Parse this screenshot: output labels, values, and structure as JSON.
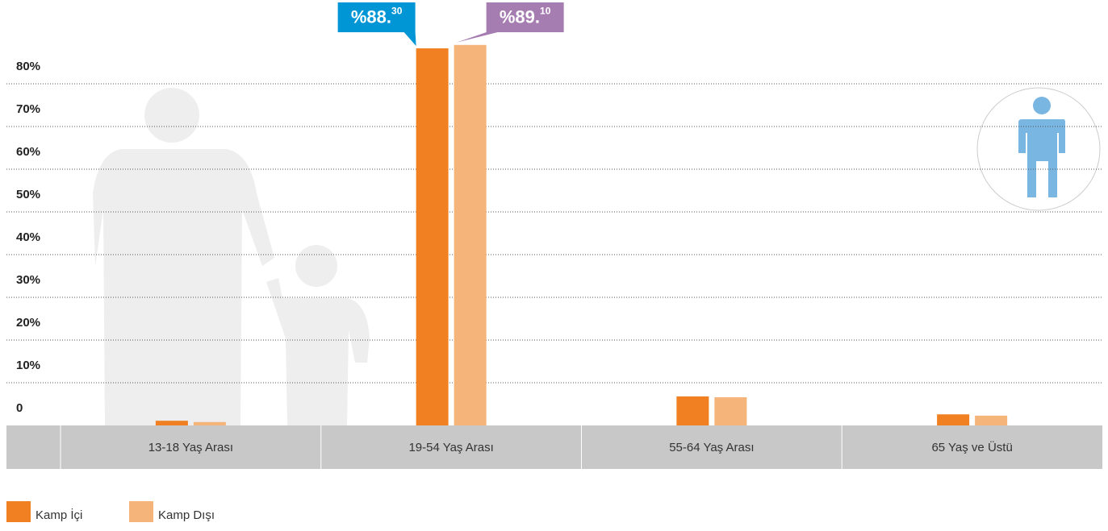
{
  "chart_data": {
    "type": "bar",
    "categories": [
      "13-18 Yaş Arası",
      "19-54 Yaş Arası",
      "55-64 Yaş Arası",
      "65 Yaş ve Üstü"
    ],
    "series": [
      {
        "name": "Kamp İçi",
        "color": "#f08022",
        "label_color": "#0096d6",
        "values": [
          1.1,
          88.3,
          6.8,
          2.6
        ],
        "value_labels": [
          null,
          "%88.30",
          null,
          null
        ]
      },
      {
        "name": "Kamp Dışı",
        "color": "#f5b47a",
        "label_color": "#a57db1",
        "values": [
          0.8,
          89.1,
          6.6,
          2.3
        ],
        "value_labels": [
          null,
          "%89.10",
          null,
          null
        ]
      }
    ],
    "ylim": [
      0,
      80
    ],
    "yticks": [
      0,
      {
        "value": 10,
        "label": "10%"
      },
      {
        "value": 20,
        "label": "20%"
      },
      {
        "value": 30,
        "label": "30%"
      },
      {
        "value": 40,
        "label": "40%"
      },
      {
        "value": 50,
        "label": "50%"
      },
      {
        "value": 60,
        "label": "60%"
      },
      {
        "value": 70,
        "label": "70%"
      },
      {
        "value": 80,
        "label": "80%"
      }
    ],
    "grid": true
  }
}
